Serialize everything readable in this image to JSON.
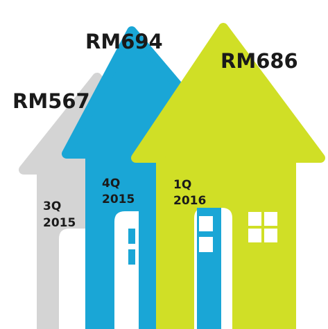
{
  "houses": [
    {
      "value": "RM567",
      "quarter": "3Q",
      "year": "2015"
    },
    {
      "value": "RM694",
      "quarter": "4Q",
      "year": "2015"
    },
    {
      "value": "RM686",
      "quarter": "1Q",
      "year": "2016"
    }
  ]
}
